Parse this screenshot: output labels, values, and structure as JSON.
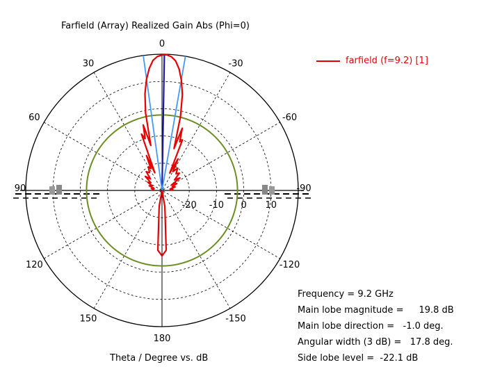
{
  "chart_data": {
    "type": "polar-line",
    "title": "Farfield (Array) Realized Gain Abs (Phi=0)",
    "xlabel": "Theta / Degree vs. dB",
    "angle_tick_labels": [
      {
        "angle": 0,
        "label": "0"
      },
      {
        "angle": 30,
        "label": "-30"
      },
      {
        "angle": 60,
        "label": "-60"
      },
      {
        "angle": 90,
        "label": "-90"
      },
      {
        "angle": 120,
        "label": "-120"
      },
      {
        "angle": 150,
        "label": "-150"
      },
      {
        "angle": 180,
        "label": "180"
      },
      {
        "angle": -150,
        "label": "150"
      },
      {
        "angle": -120,
        "label": "120"
      },
      {
        "angle": -90,
        "label": "90"
      },
      {
        "angle": -60,
        "label": "60"
      },
      {
        "angle": -30,
        "label": "30"
      }
    ],
    "radial_range": [
      -30,
      20
    ],
    "radial_tick_labels": [
      {
        "value": -20,
        "label": "-20"
      },
      {
        "value": -10,
        "label": "-10"
      },
      {
        "value": 0,
        "label": "0"
      },
      {
        "value": 10,
        "label": "10"
      }
    ],
    "series": [
      {
        "name": "farfield (f=9.2) [1]",
        "color": "#e60000",
        "theta_deg": [
          -90,
          -85,
          -80,
          -75,
          -70,
          -65,
          -60,
          -55,
          -50,
          -45,
          -40,
          -35,
          -30,
          -27,
          -24,
          -22,
          -20,
          -18,
          -16,
          -14,
          -12,
          -10,
          -8,
          -6,
          -4,
          -2,
          -1,
          0,
          2,
          4,
          6,
          8,
          10,
          12,
          14,
          16,
          18,
          20,
          22,
          24,
          27,
          30,
          35,
          40,
          45,
          50,
          55,
          60,
          65,
          70,
          75,
          80,
          85,
          90
        ],
        "gain_db": [
          -27,
          -26,
          -27,
          -25,
          -26,
          -24,
          -26,
          -22,
          -24,
          -21,
          -22,
          -20,
          -22,
          -17,
          -23,
          -10,
          -11,
          -6,
          -14,
          -2,
          6,
          11,
          15,
          17.8,
          19.2,
          19.8,
          19.8,
          19.7,
          19.2,
          17.8,
          15,
          11,
          6,
          -1,
          -13,
          -5,
          -10,
          -8,
          -23,
          -16,
          -21,
          -20,
          -22,
          -21,
          -24,
          -22,
          -25,
          -24,
          -26,
          -25,
          -27,
          -26,
          -27,
          -27
        ],
        "back_theta_deg": [
          -170,
          -176,
          180,
          176,
          170
        ],
        "back_gain_db": [
          -24,
          -8,
          -6,
          -8,
          -24
        ]
      }
    ],
    "beam_direction_deg": -1.0,
    "beamwidth_3db_deg": 17.8,
    "sidelobe_level_db": -22.1,
    "main_lobe_db": 19.8,
    "sidelobe_circle_db": -2.3,
    "colors": {
      "beam": "#1a1aa0",
      "beam_edges": "#4499ff",
      "sidelobe_circle": "#6b8e23"
    }
  },
  "info": {
    "frequency": "Frequency = 9.2 GHz",
    "main_lobe_magnitude_label": "Main lobe magnitude =",
    "main_lobe_magnitude_value": "19.8 dB",
    "main_lobe_direction": "Main lobe direction =   -1.0 deg.",
    "angular_width": "Angular width (3 dB) =   17.8 deg.",
    "side_lobe_level": "Side lobe level =  -22.1 dB"
  }
}
